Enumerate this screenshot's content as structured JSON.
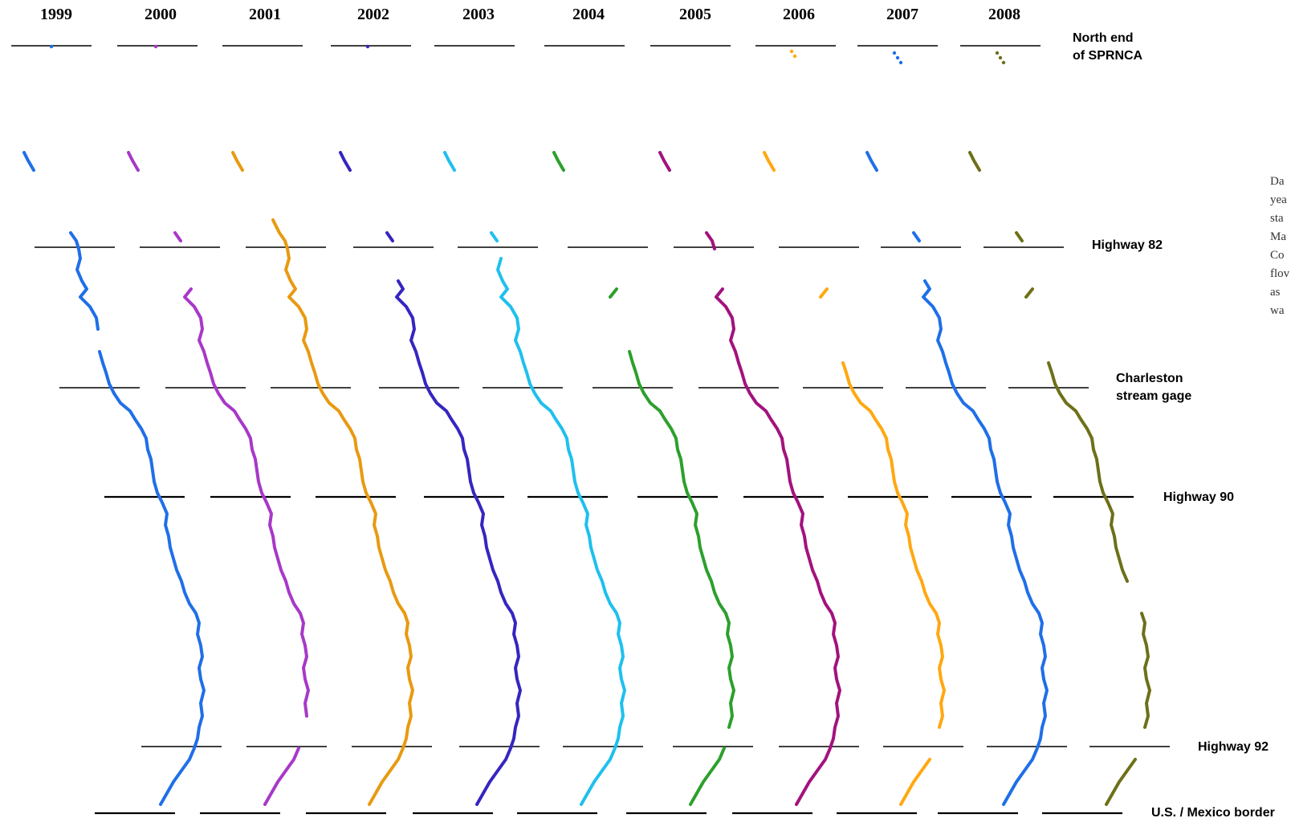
{
  "years": [
    "1999",
    "2000",
    "2001",
    "2002",
    "2003",
    "2004",
    "2005",
    "2006",
    "2007",
    "2008"
  ],
  "year_colors": [
    "#1f6fe8",
    "#a838c8",
    "#e89a10",
    "#3526c0",
    "#1ec0ee",
    "#2ca02c",
    "#a3127e",
    "#ffa812",
    "#1f6fe8",
    "#6e7018"
  ],
  "landmarks": {
    "north_end_line1": "North end",
    "north_end_line2": "of SPRNCA",
    "highway82": "Highway 82",
    "charleston_line1": "Charleston",
    "charleston_line2": "stream gage",
    "highway90": "Highway 90",
    "highway92": "Highway 92",
    "border": "U.S. / Mexico border"
  },
  "side_note_lines": [
    "Da",
    "yea",
    "sta",
    "Ma",
    "Co",
    "flov",
    "as",
    "wa"
  ]
}
